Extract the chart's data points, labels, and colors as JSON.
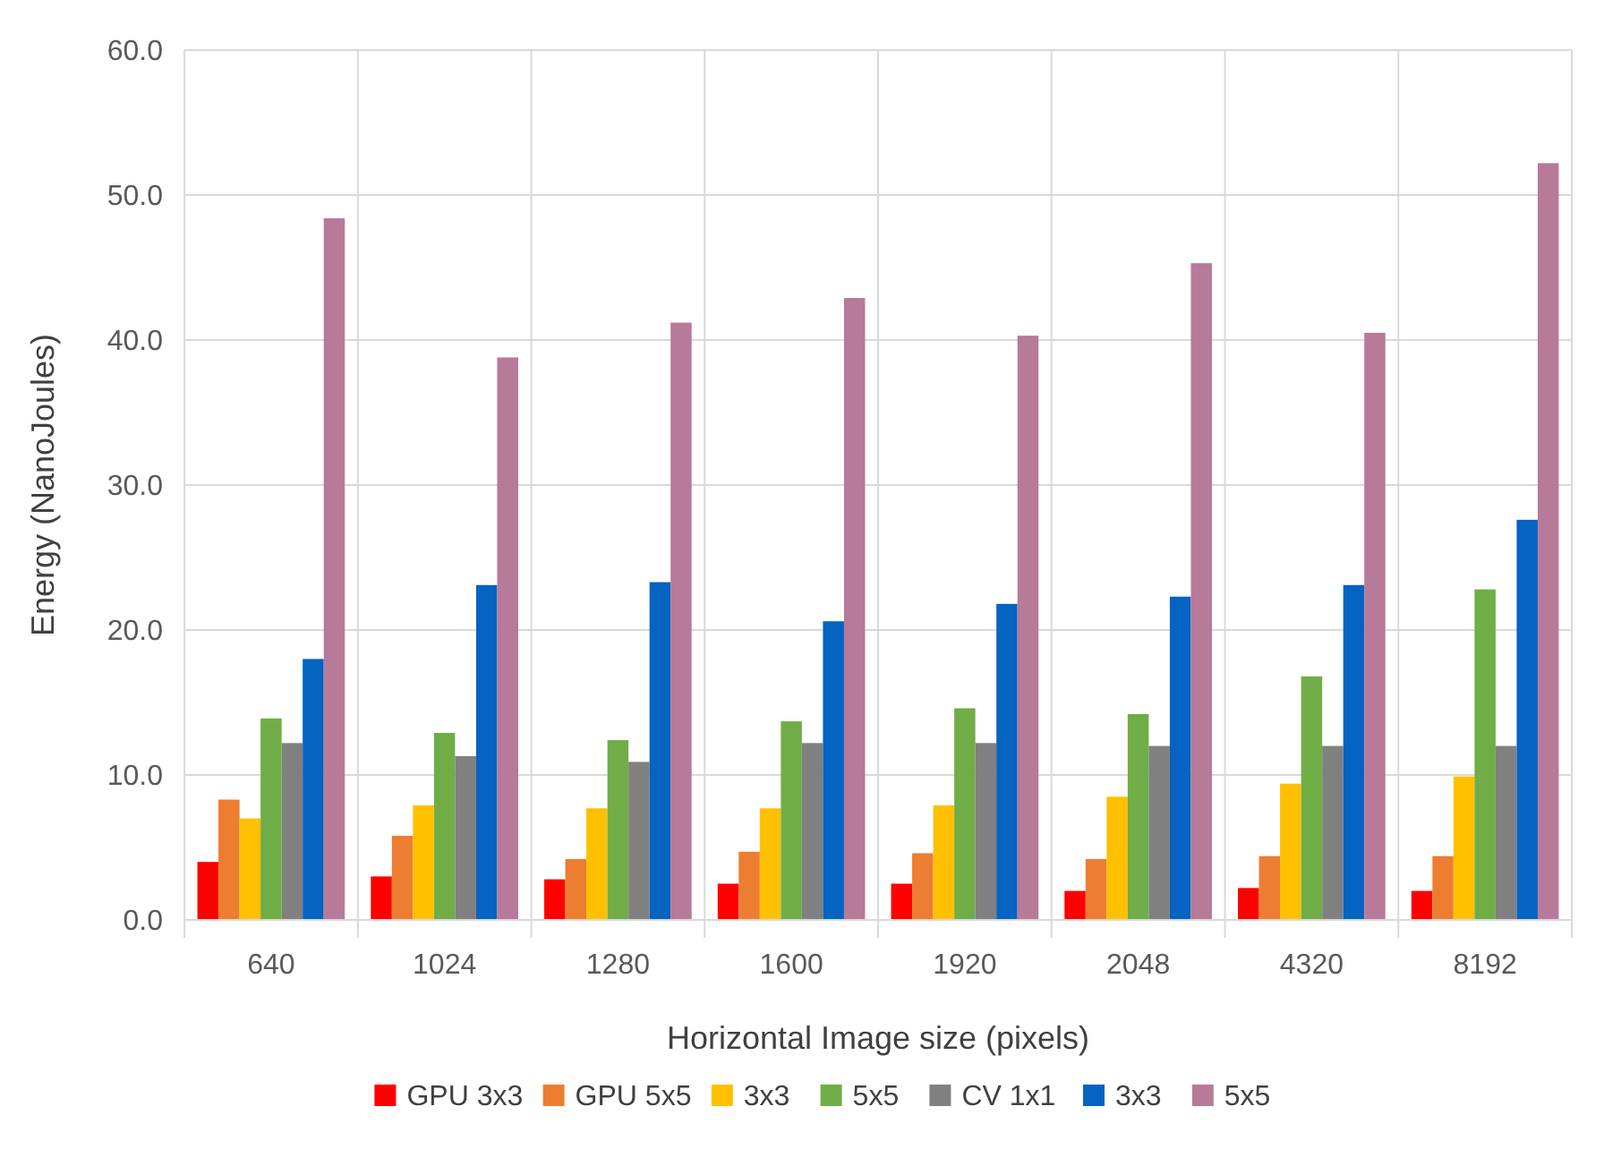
{
  "chart_data": {
    "type": "bar",
    "xlabel": "Horizontal Image size (pixels)",
    "ylabel": "Energy (NanoJoules)",
    "categories": [
      "640",
      "1024",
      "1280",
      "1600",
      "1920",
      "2048",
      "4320",
      "8192"
    ],
    "series": [
      {
        "name": "GPU 3x3",
        "color": "#ff0000",
        "values": [
          4.0,
          3.0,
          2.8,
          2.5,
          2.5,
          2.0,
          2.2,
          2.0
        ]
      },
      {
        "name": "GPU 5x5",
        "color": "#ed7d31",
        "values": [
          8.3,
          5.8,
          4.2,
          4.7,
          4.6,
          4.2,
          4.4,
          4.4
        ]
      },
      {
        "name": "3x3",
        "color": "#ffc000",
        "values": [
          7.0,
          7.9,
          7.7,
          7.7,
          7.9,
          8.5,
          9.4,
          9.9
        ]
      },
      {
        "name": "5x5",
        "color": "#70ad47",
        "values": [
          13.9,
          12.9,
          12.4,
          13.7,
          14.6,
          14.2,
          16.8,
          22.8
        ]
      },
      {
        "name": "CV 1x1",
        "color": "#808080",
        "values": [
          12.2,
          11.3,
          10.9,
          12.2,
          12.2,
          12.0,
          12.0,
          12.0
        ]
      },
      {
        "name": "3x3",
        "color": "#0563c1",
        "values": [
          18.0,
          23.1,
          23.3,
          20.6,
          21.8,
          22.3,
          23.1,
          27.6
        ]
      },
      {
        "name": "5x5",
        "color": "#b77a99",
        "values": [
          48.4,
          38.8,
          41.2,
          42.9,
          40.3,
          45.3,
          40.5,
          52.2
        ]
      }
    ],
    "ylim": [
      0,
      60
    ],
    "yticks": [
      {
        "value": 0,
        "label": "0.0"
      },
      {
        "value": 10,
        "label": "10.0"
      },
      {
        "value": 20,
        "label": "20.0"
      },
      {
        "value": 30,
        "label": "30.0"
      },
      {
        "value": 40,
        "label": "40.0"
      },
      {
        "value": 50,
        "label": "50.0"
      },
      {
        "value": 60,
        "label": "60.0"
      }
    ],
    "grid": true,
    "legend": "bottom"
  }
}
